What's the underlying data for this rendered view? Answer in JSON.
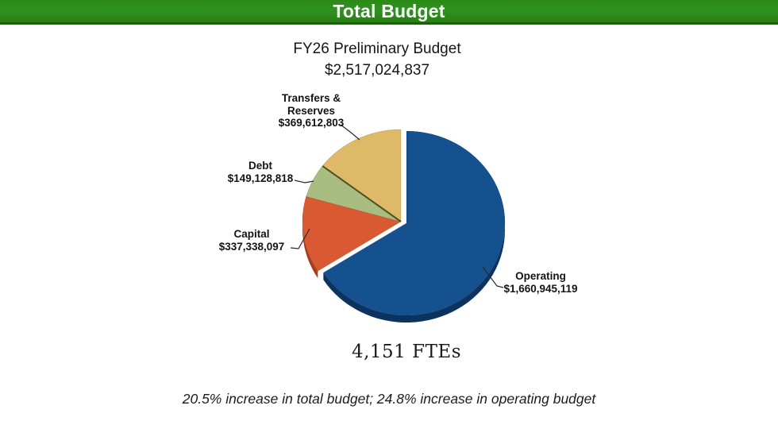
{
  "header": {
    "title": "Total Budget",
    "bar_color": "#2E8A17"
  },
  "chart_title": {
    "line1": "FY26 Preliminary Budget",
    "line2": "$2,517,024,837"
  },
  "chart_data": {
    "type": "pie",
    "title": "FY26 Preliminary Budget",
    "total_value": 2517024837,
    "total_label": "$2,517,024,837",
    "start_angle_deg": 0,
    "direction": "clockwise",
    "legend_position": "callout-labels",
    "slices": [
      {
        "label": "Operating",
        "label_lines": [
          "Operating"
        ],
        "value": 1660945119,
        "value_label": "$1,660,945,119",
        "color": "#15508F",
        "side_color": "#0C3260",
        "exploded": true
      },
      {
        "label": "Capital",
        "label_lines": [
          "Capital"
        ],
        "value": 337338097,
        "value_label": "$337,338,097",
        "color": "#D95933",
        "side_color": "#A83E1E",
        "exploded": false
      },
      {
        "label": "Debt",
        "label_lines": [
          "Debt"
        ],
        "value": 149128818,
        "value_label": "$149,128,818",
        "color": "#A9BD80",
        "side_color": "#78904F",
        "exploded": false
      },
      {
        "label": "Transfers & Reserves",
        "label_lines": [
          "Transfers &",
          "Reserves"
        ],
        "value": 369612803,
        "value_label": "$369,612,803",
        "color": "#DDB968",
        "side_color": "#B08D3C",
        "exploded": false
      }
    ]
  },
  "fte_text": "4,151 FTEs",
  "footnote": "20.5% increase in total budget; 24.8% increase in operating budget"
}
